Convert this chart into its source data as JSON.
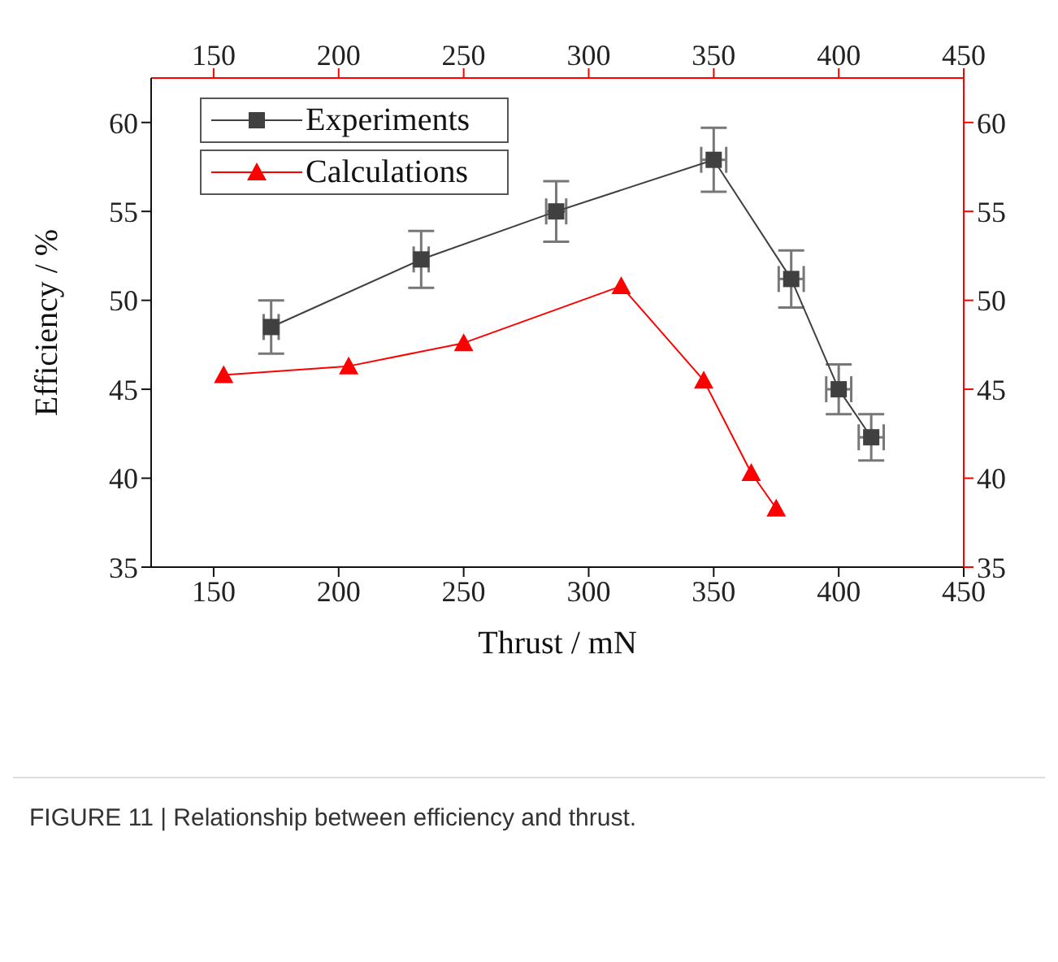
{
  "chart_data": {
    "type": "line",
    "xlabel": "Thrust / mN",
    "ylabel": "Efficiency / %",
    "annotations": [
      "FIGURE 11 | Relationship between efficiency and thrust."
    ],
    "xlim": [
      125,
      450
    ],
    "xticks": [
      150,
      200,
      250,
      300,
      350,
      400,
      450
    ],
    "x2lim": [
      125,
      450
    ],
    "x2ticks": [
      150,
      200,
      250,
      300,
      350,
      400,
      450
    ],
    "ylim": [
      35,
      62.5
    ],
    "yticks": [
      35,
      40,
      45,
      50,
      55,
      60
    ],
    "y2lim": [
      35,
      62.5
    ],
    "y2ticks": [
      35,
      40,
      45,
      50,
      55,
      60
    ],
    "grid": false,
    "legend": "top left",
    "line_style": "solid",
    "series": [
      {
        "name": "Experiments",
        "color": "#404040",
        "marker": "square",
        "x": [
          173,
          233,
          287,
          350,
          381,
          400,
          413
        ],
        "values": [
          48.5,
          52.3,
          55.0,
          57.9,
          51.2,
          45.0,
          42.3
        ],
        "errors": [
          1.5,
          1.6,
          1.7,
          1.8,
          1.6,
          1.4,
          1.3
        ],
        "xerrors": [
          3,
          3,
          4,
          5,
          5,
          5,
          5
        ]
      },
      {
        "name": "Calculations",
        "color": "#ff0000",
        "marker": "triangle",
        "x": [
          154,
          204,
          250,
          313,
          346,
          365,
          375
        ],
        "values": [
          45.8,
          46.3,
          47.6,
          50.8,
          45.5,
          40.3,
          38.3
        ]
      }
    ]
  }
}
